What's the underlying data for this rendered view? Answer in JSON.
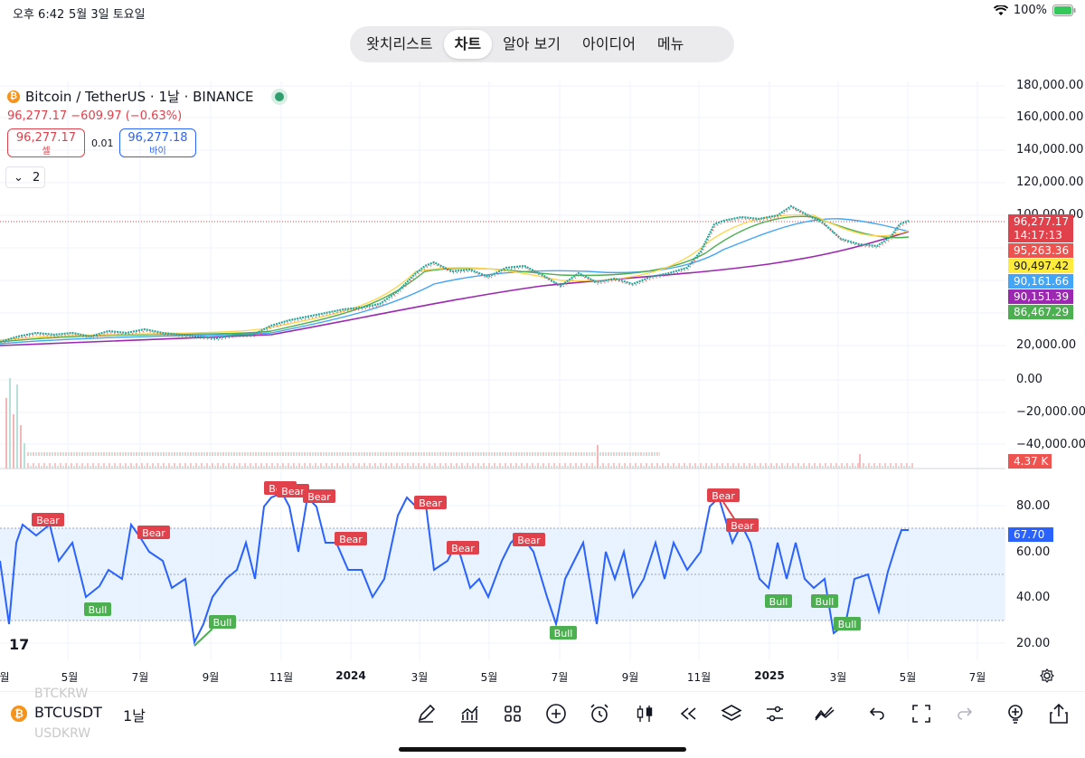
{
  "status_bar": {
    "time": "오후 6:42",
    "date": "5월 3일 토요일",
    "battery": "100%"
  },
  "nav_tabs": [
    {
      "label": "왓치리스트",
      "active": false
    },
    {
      "label": "차트",
      "active": true
    },
    {
      "label": "알아 보기",
      "active": false
    },
    {
      "label": "아이디어",
      "active": false
    },
    {
      "label": "메뉴",
      "active": false
    }
  ],
  "symbol": {
    "title": "Bitcoin / TetherUS · 1날 · BINANCE",
    "price_change": "96,277.17  −609.97 (−0.63%)",
    "sell_price": "96,277.17",
    "sell_label": "셀",
    "spread": "0.01",
    "buy_price": "96,277.18",
    "buy_label": "바이",
    "collapsed_count": "2"
  },
  "price_axis": [
    "180,000.00",
    "160,000.00",
    "140,000.00",
    "120,000.00",
    "100,000.00",
    "20,000.00",
    "0.00",
    "−20,000.00",
    "−40,000.00"
  ],
  "price_tags": [
    {
      "text": "96,277.17",
      "color": "#e0414b"
    },
    {
      "text": "14:17:13",
      "color": "#e0414b"
    },
    {
      "text": "95,263.36",
      "color": "#ef5350"
    },
    {
      "text": "90,497.42",
      "color": "#ffeb3b"
    },
    {
      "text": "90,161.66",
      "color": "#42a5f5"
    },
    {
      "text": "90,151.39",
      "color": "#9c27b0"
    },
    {
      "text": "86,467.29",
      "color": "#4caf50"
    }
  ],
  "volume_tag": "4.37 K",
  "rsi": {
    "axis": [
      "80.00",
      "60.00",
      "40.00",
      "20.00"
    ],
    "current": "67.70",
    "bear_label": "Bear",
    "bull_label": "Bull"
  },
  "time_axis": [
    "월",
    "5월",
    "7월",
    "9월",
    "11월",
    "2024",
    "3월",
    "5월",
    "7월",
    "9월",
    "11월",
    "2025",
    "3월",
    "5월",
    "7월"
  ],
  "tradingview_logo": "17",
  "bottom_bar": {
    "symbol": "BTCUSDT",
    "interval": "1날",
    "ghost_above": "BTCKRW",
    "ghost_below": "USDKRW",
    "tools": [
      "pen-icon",
      "indicators-icon",
      "grid-icon",
      "add-icon",
      "alarm-icon",
      "candles-icon",
      "replay-icon",
      "layers-icon",
      "settings-icon",
      "trend-icon",
      "undo-icon",
      "fullscreen-icon",
      "redo-icon",
      "idea-icon",
      "share-icon"
    ]
  }
}
